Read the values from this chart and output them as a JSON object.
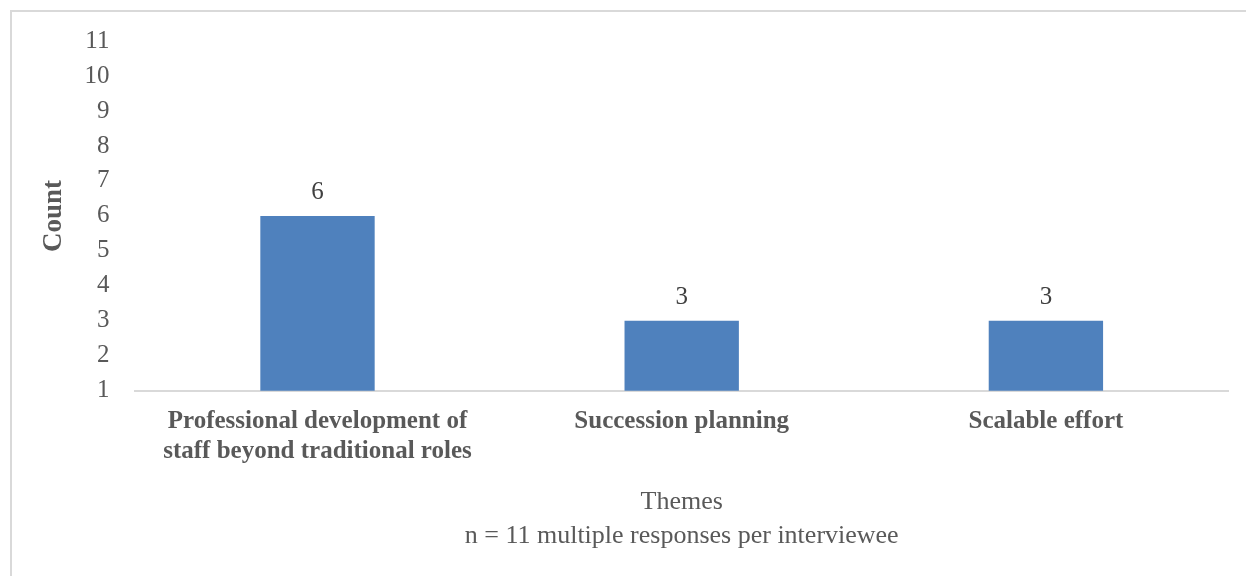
{
  "chart_data": {
    "type": "bar",
    "categories": [
      "Professional development of staff beyond traditional roles",
      "Succession planning",
      "Scalable effort"
    ],
    "values": [
      6,
      3,
      3
    ],
    "color": "#4f81bd",
    "xlabel": "Themes",
    "ylabel": "Count",
    "annotations": [
      "n = 11 multiple responses per interviewee"
    ],
    "ylim": [
      1,
      11
    ],
    "yticks": [
      1,
      2,
      3,
      4,
      5,
      6,
      7,
      8,
      9,
      10,
      11
    ],
    "grid": false,
    "data_labels": true
  }
}
